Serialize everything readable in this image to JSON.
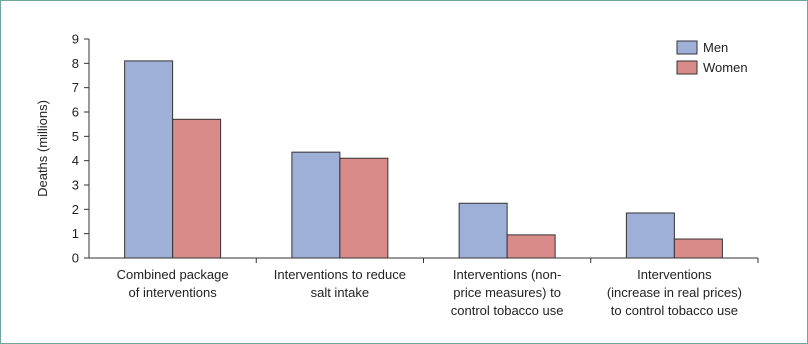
{
  "chart_data": {
    "type": "bar",
    "title": "",
    "ylabel": "Deaths (millions)",
    "xlabel": "",
    "ylim": [
      0,
      9
    ],
    "yticks": [
      0,
      1,
      2,
      3,
      4,
      5,
      6,
      7,
      8,
      9
    ],
    "grid": false,
    "legend_position": "top-right",
    "categories": [
      [
        "Combined package",
        "of interventions"
      ],
      [
        "Interventions to reduce",
        "salt intake"
      ],
      [
        "Interventions (non-",
        "price measures) to",
        "control tobacco use"
      ],
      [
        "Interventions",
        "(increase in real prices)",
        "to control tobacco use"
      ]
    ],
    "series": [
      {
        "name": "Men",
        "color": "#9fb0d8",
        "values": [
          8.1,
          4.35,
          2.25,
          1.85
        ]
      },
      {
        "name": "Women",
        "color": "#d98b89",
        "values": [
          5.7,
          4.1,
          0.95,
          0.78
        ]
      }
    ]
  }
}
